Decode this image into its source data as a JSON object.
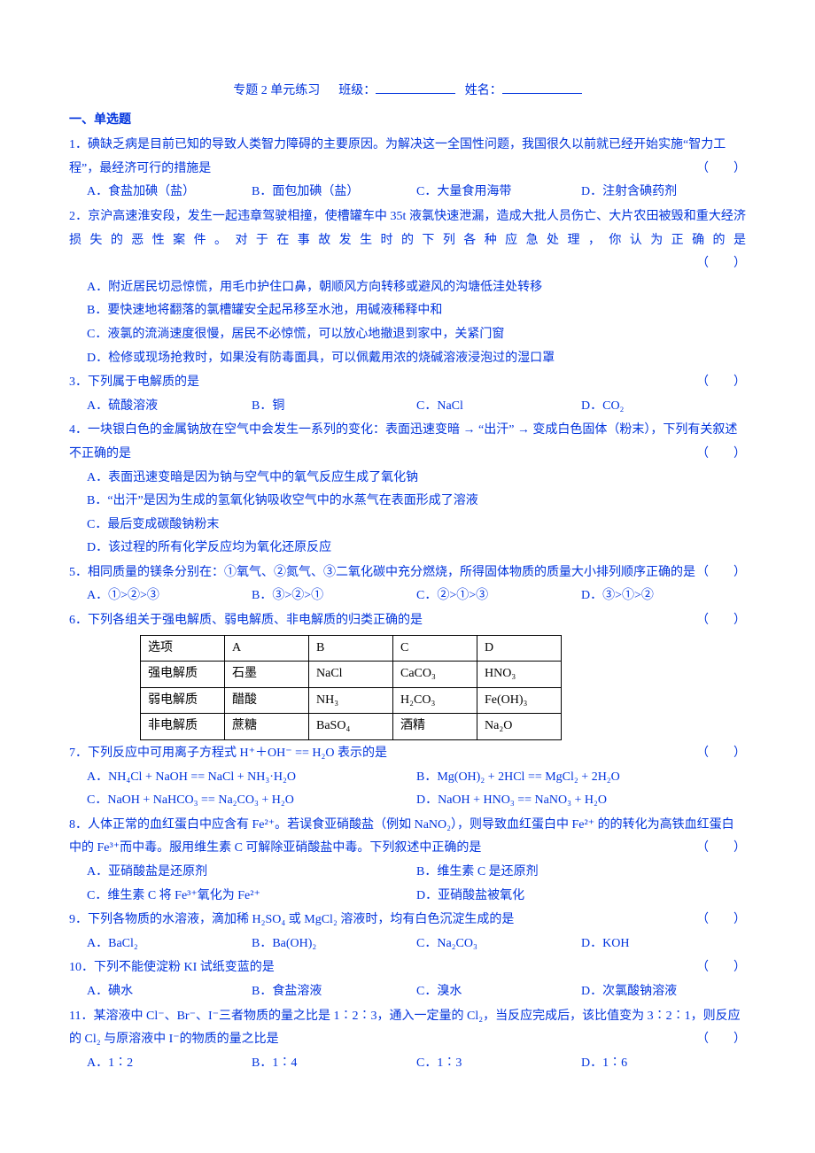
{
  "header": {
    "title_left": "专题 2",
    "title_mid": "单元练习",
    "class_label": "班级：",
    "name_label": "姓名："
  },
  "section1_title": "一、单选题",
  "bracket": "（　　）",
  "q1": {
    "stem": "1．碘缺乏病是目前已知的导致人类智力障碍的主要原因。为解决这一全国性问题，我国很久以前就已经开始实施“智力工程”，最经济可行的措施是",
    "A": "A．食盐加碘（盐）",
    "B": "B．面包加碘（盐）",
    "C": "C．大量食用海带",
    "D": "D．注射含碘药剂"
  },
  "q2": {
    "stem": "2．京沪高速淮安段，发生一起违章驾驶相撞，使槽罐车中 35t 液氯快速泄漏，造成大批人员伤亡、大片农田被毁和重大经济损失的恶性案件。对于在事故发生时的下列各种应急处理，你认为正确的是",
    "A": "A．附近居民切忌惊慌，用毛巾护住口鼻，朝顺风方向转移或避风的沟塘低洼处转移",
    "B": "B．要快速地将翻落的氯槽罐安全起吊移至水池，用碱液稀释中和",
    "C": "C．液氯的流淌速度很慢，居民不必惊慌，可以放心地撤退到家中，关紧门窗",
    "D": "D．检修或现场抢救时，如果没有防毒面具，可以佩戴用浓的烧碱溶液浸泡过的湿口罩"
  },
  "q3": {
    "stem": "3．下列属于电解质的是",
    "A": "A．硫酸溶液",
    "B": "B．铜",
    "C": "C．NaCl",
    "D": "D．CO₂"
  },
  "q4": {
    "stem": "4．一块银白色的金属钠放在空气中会发生一系列的变化：表面迅速变暗 → “出汗” → 变成白色固体（粉末），下列有关叙述不正确的是",
    "A": "A．表面迅速变暗是因为钠与空气中的氧气反应生成了氧化钠",
    "B": "B．“出汗”是因为生成的氢氧化钠吸收空气中的水蒸气在表面形成了溶液",
    "C": "C．最后变成碳酸钠粉末",
    "D": "D．该过程的所有化学反应均为氧化还原反应"
  },
  "q5": {
    "stem": "5．相同质量的镁条分别在：①氧气、②氮气、③二氧化碳中充分燃烧，所得固体物质的质量大小排列顺序正确的是",
    "A": "A．①>②>③",
    "B": "B．③>②>①",
    "C": "C．②>①>③",
    "D": "D．③>①>②"
  },
  "q6": {
    "stem": "6．下列各组关于强电解质、弱电解质、非电解质的归类正确的是",
    "table": {
      "columns": [
        "选项",
        "A",
        "B",
        "C",
        "D"
      ],
      "rows": [
        [
          "强电解质",
          "石墨",
          "NaCl",
          "CaCO₃",
          "HNO₃"
        ],
        [
          "弱电解质",
          "醋酸",
          "NH₃",
          "H₂CO₃",
          "Fe(OH)₃"
        ],
        [
          "非电解质",
          "蔗糖",
          "BaSO₄",
          "酒精",
          "Na₂O"
        ]
      ]
    }
  },
  "q7": {
    "stem": "7．下列反应中可用离子方程式 H⁺＋OH⁻ == H₂O 表示的是",
    "A": "A．NH₄Cl + NaOH == NaCl + NH₃·H₂O",
    "B": "B．Mg(OH)₂ + 2HCl == MgCl₂ + 2H₂O",
    "C": "C．NaOH + NaHCO₃ == Na₂CO₃ + H₂O",
    "D": "D．NaOH + HNO₃ == NaNO₃ + H₂O"
  },
  "q8": {
    "stem": "8．人体正常的血红蛋白中应含有 Fe²⁺。若误食亚硝酸盐（例如 NaNO₂），则导致血红蛋白中 Fe²⁺ 的的转化为高铁血红蛋白中的 Fe³⁺而中毒。服用维生素 C 可解除亚硝酸盐中毒。下列叙述中正确的是",
    "A": "A．亚硝酸盐是还原剂",
    "B": "B．维生素 C 是还原剂",
    "C": "C．维生素 C 将 Fe³⁺氧化为 Fe²⁺",
    "D": "D．亚硝酸盐被氧化"
  },
  "q9": {
    "stem": "9．下列各物质的水溶液，滴加稀 H₂SO₄ 或 MgCl₂ 溶液时，均有白色沉淀生成的是",
    "A": "A．BaCl₂",
    "B": "B．Ba(OH)₂",
    "C": "C．Na₂CO₃",
    "D": "D．KOH"
  },
  "q10": {
    "stem": "10．下列不能使淀粉 KI 试纸变蓝的是",
    "A": "A．碘水",
    "B": "B．食盐溶液",
    "C": "C．溴水",
    "D": "D．次氯酸钠溶液"
  },
  "q11": {
    "stem": "11．某溶液中 Cl⁻、Br⁻、I⁻三者物质的量之比是 1∶2∶3，通入一定量的 Cl₂，当反应完成后，该比值变为 3∶2∶1，则反应的 Cl₂ 与原溶液中 I⁻的物质的量之比是",
    "A": "A．1∶2",
    "B": "B．1∶4",
    "C": "C．1∶3",
    "D": "D．1∶6"
  }
}
